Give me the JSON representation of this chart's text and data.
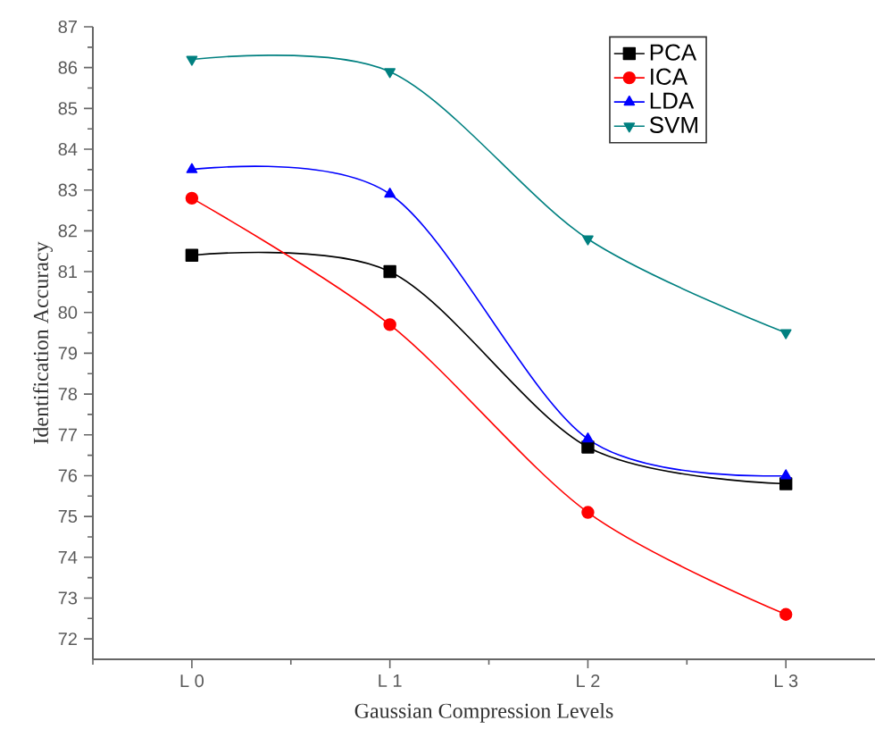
{
  "chart_data": {
    "type": "line",
    "xlabel": "Gaussian Compression Levels",
    "ylabel": "Identification Accuracy",
    "categories": [
      "L 0",
      "L 1",
      "L 2",
      "L 3"
    ],
    "ylim": [
      71.5,
      87
    ],
    "yticks": [
      72,
      73,
      74,
      75,
      76,
      77,
      78,
      79,
      80,
      81,
      82,
      83,
      84,
      85,
      86,
      87
    ],
    "series": [
      {
        "name": "PCA",
        "color": "#000000",
        "marker": "square",
        "values": [
          81.4,
          81.0,
          76.7,
          75.8
        ]
      },
      {
        "name": "ICA",
        "color": "#ff0000",
        "marker": "circle",
        "values": [
          82.8,
          79.7,
          75.1,
          72.6
        ]
      },
      {
        "name": "LDA",
        "color": "#0000ff",
        "marker": "triangle",
        "values": [
          83.5,
          82.9,
          76.9,
          76.0
        ]
      },
      {
        "name": "SVM",
        "color": "#008080",
        "marker": "triangle-down",
        "values": [
          86.2,
          85.9,
          81.8,
          79.5
        ]
      }
    ],
    "legend": "top right",
    "grid": false,
    "line_style": "solid"
  }
}
